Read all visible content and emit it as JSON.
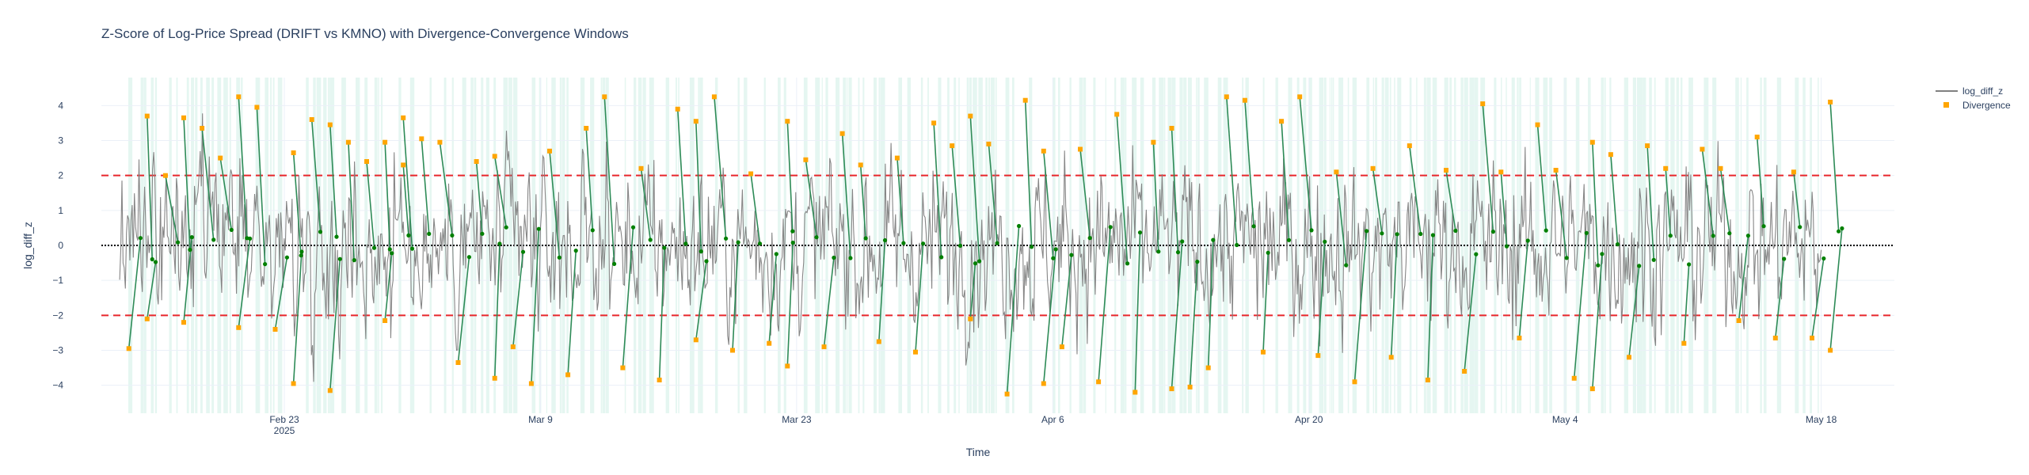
{
  "chart_data": {
    "type": "line",
    "title": "Z-Score of Log-Price Spread (DRIFT vs KMNO) with Divergence-Convergence Windows",
    "xlabel": "Time",
    "ylabel": "log_diff_z",
    "x_range": [
      "2025-02-13",
      "2025-05-22"
    ],
    "x_data_range": [
      "2025-02-14",
      "2025-05-18"
    ],
    "ylim": [
      -4.8,
      4.8
    ],
    "y_ticks": [
      4,
      3,
      2,
      1,
      0,
      -1,
      -2,
      -3,
      -4
    ],
    "x_ticks": [
      {
        "date": "2025-02-23",
        "label": "Feb 23",
        "sublabel": "2025"
      },
      {
        "date": "2025-03-09",
        "label": "Mar 9",
        "sublabel": ""
      },
      {
        "date": "2025-03-23",
        "label": "Mar 23",
        "sublabel": ""
      },
      {
        "date": "2025-04-06",
        "label": "Apr 6",
        "sublabel": ""
      },
      {
        "date": "2025-04-20",
        "label": "Apr 20",
        "sublabel": ""
      },
      {
        "date": "2025-05-04",
        "label": "May 4",
        "sublabel": ""
      },
      {
        "date": "2025-05-18",
        "label": "May 18",
        "sublabel": ""
      }
    ],
    "threshold_lines": [
      {
        "y": 2,
        "color": "#e8262b",
        "style": "dashed"
      },
      {
        "y": -2,
        "color": "#e8262b",
        "style": "dashed"
      },
      {
        "y": 0,
        "color": "#000000",
        "style": "dotted"
      }
    ],
    "grid": true,
    "legend_position": "top-right",
    "series": [
      {
        "name": "log_diff_z",
        "kind": "line",
        "color": "#808080",
        "description_values": "noisy oscillation mostly between -3 and 3"
      },
      {
        "name": "Divergence",
        "kind": "markers",
        "marker": "square",
        "color": "#ffa500"
      }
    ],
    "unlabeled_overlays": {
      "window_line_color": "#2e8b57",
      "convergence_marker_color": "#008000",
      "window_band_color": "#e0f5ee"
    },
    "divergence_points": [
      {
        "x": "2025-02-14",
        "y": -2.95
      },
      {
        "x": "2025-02-15",
        "y": 3.7
      },
      {
        "x": "2025-02-15",
        "y": -2.1
      },
      {
        "x": "2025-02-16",
        "y": 2.0
      },
      {
        "x": "2025-02-17",
        "y": 3.65
      },
      {
        "x": "2025-02-17",
        "y": -2.2
      },
      {
        "x": "2025-02-18",
        "y": 3.35
      },
      {
        "x": "2025-02-19",
        "y": 2.5
      },
      {
        "x": "2025-02-20",
        "y": 4.25
      },
      {
        "x": "2025-02-20",
        "y": -2.35
      },
      {
        "x": "2025-02-21",
        "y": 3.95
      },
      {
        "x": "2025-02-22",
        "y": -2.4
      },
      {
        "x": "2025-02-23",
        "y": -3.95
      },
      {
        "x": "2025-02-23",
        "y": 2.65
      },
      {
        "x": "2025-02-24",
        "y": 3.6
      },
      {
        "x": "2025-02-25",
        "y": 3.45
      },
      {
        "x": "2025-02-25",
        "y": -4.15
      },
      {
        "x": "2025-02-26",
        "y": 2.95
      },
      {
        "x": "2025-02-27",
        "y": 2.4
      },
      {
        "x": "2025-02-28",
        "y": 2.95
      },
      {
        "x": "2025-02-28",
        "y": -2.15
      },
      {
        "x": "2025-03-01",
        "y": 3.65
      },
      {
        "x": "2025-03-01",
        "y": 2.3
      },
      {
        "x": "2025-03-02",
        "y": 3.05
      },
      {
        "x": "2025-03-03",
        "y": 2.95
      },
      {
        "x": "2025-03-04",
        "y": -3.35
      },
      {
        "x": "2025-03-05",
        "y": 2.4
      },
      {
        "x": "2025-03-06",
        "y": -3.8
      },
      {
        "x": "2025-03-06",
        "y": 2.55
      },
      {
        "x": "2025-03-07",
        "y": -2.9
      },
      {
        "x": "2025-03-08",
        "y": -3.95
      },
      {
        "x": "2025-03-09",
        "y": 2.7
      },
      {
        "x": "2025-03-10",
        "y": -3.7
      },
      {
        "x": "2025-03-11",
        "y": 3.35
      },
      {
        "x": "2025-03-12",
        "y": 4.25
      },
      {
        "x": "2025-03-13",
        "y": -3.5
      },
      {
        "x": "2025-03-14",
        "y": 2.2
      },
      {
        "x": "2025-03-15",
        "y": -3.85
      },
      {
        "x": "2025-03-16",
        "y": 3.9
      },
      {
        "x": "2025-03-17",
        "y": 3.55
      },
      {
        "x": "2025-03-17",
        "y": -2.7
      },
      {
        "x": "2025-03-18",
        "y": 4.25
      },
      {
        "x": "2025-03-19",
        "y": -3.0
      },
      {
        "x": "2025-03-20",
        "y": 2.05
      },
      {
        "x": "2025-03-21",
        "y": -2.8
      },
      {
        "x": "2025-03-22",
        "y": 3.55
      },
      {
        "x": "2025-03-22",
        "y": -3.45
      },
      {
        "x": "2025-03-23",
        "y": 2.45
      },
      {
        "x": "2025-03-24",
        "y": -2.9
      },
      {
        "x": "2025-03-25",
        "y": 3.2
      },
      {
        "x": "2025-03-26",
        "y": 2.3
      },
      {
        "x": "2025-03-27",
        "y": -2.75
      },
      {
        "x": "2025-03-28",
        "y": 2.5
      },
      {
        "x": "2025-03-29",
        "y": -3.05
      },
      {
        "x": "2025-03-30",
        "y": 3.5
      },
      {
        "x": "2025-03-31",
        "y": 2.85
      },
      {
        "x": "2025-04-01",
        "y": 3.7
      },
      {
        "x": "2025-04-01",
        "y": -2.1
      },
      {
        "x": "2025-04-02",
        "y": 2.9
      },
      {
        "x": "2025-04-03",
        "y": -4.25
      },
      {
        "x": "2025-04-04",
        "y": 4.15
      },
      {
        "x": "2025-04-05",
        "y": 2.7
      },
      {
        "x": "2025-04-05",
        "y": -3.95
      },
      {
        "x": "2025-04-06",
        "y": -2.9
      },
      {
        "x": "2025-04-07",
        "y": 2.75
      },
      {
        "x": "2025-04-08",
        "y": -3.9
      },
      {
        "x": "2025-04-09",
        "y": 3.75
      },
      {
        "x": "2025-04-10",
        "y": -4.2
      },
      {
        "x": "2025-04-11",
        "y": 2.95
      },
      {
        "x": "2025-04-12",
        "y": 3.35
      },
      {
        "x": "2025-04-12",
        "y": -4.1
      },
      {
        "x": "2025-04-13",
        "y": -4.05
      },
      {
        "x": "2025-04-14",
        "y": -3.5
      },
      {
        "x": "2025-04-15",
        "y": 4.25
      },
      {
        "x": "2025-04-16",
        "y": 4.15
      },
      {
        "x": "2025-04-17",
        "y": -3.05
      },
      {
        "x": "2025-04-18",
        "y": 3.55
      },
      {
        "x": "2025-04-19",
        "y": 4.25
      },
      {
        "x": "2025-04-20",
        "y": -3.15
      },
      {
        "x": "2025-04-21",
        "y": 2.1
      },
      {
        "x": "2025-04-22",
        "y": -3.9
      },
      {
        "x": "2025-04-23",
        "y": 2.2
      },
      {
        "x": "2025-04-24",
        "y": -3.2
      },
      {
        "x": "2025-04-25",
        "y": 2.85
      },
      {
        "x": "2025-04-26",
        "y": -3.85
      },
      {
        "x": "2025-04-27",
        "y": 2.15
      },
      {
        "x": "2025-04-28",
        "y": -3.6
      },
      {
        "x": "2025-04-29",
        "y": 4.05
      },
      {
        "x": "2025-04-30",
        "y": 2.1
      },
      {
        "x": "2025-05-01",
        "y": -2.65
      },
      {
        "x": "2025-05-02",
        "y": 3.45
      },
      {
        "x": "2025-05-03",
        "y": 2.15
      },
      {
        "x": "2025-05-04",
        "y": -3.8
      },
      {
        "x": "2025-05-05",
        "y": 2.95
      },
      {
        "x": "2025-05-05",
        "y": -4.1
      },
      {
        "x": "2025-05-06",
        "y": 2.6
      },
      {
        "x": "2025-05-07",
        "y": -3.2
      },
      {
        "x": "2025-05-08",
        "y": 2.85
      },
      {
        "x": "2025-05-09",
        "y": 2.2
      },
      {
        "x": "2025-05-10",
        "y": -2.8
      },
      {
        "x": "2025-05-11",
        "y": 2.75
      },
      {
        "x": "2025-05-12",
        "y": 2.2
      },
      {
        "x": "2025-05-13",
        "y": -2.15
      },
      {
        "x": "2025-05-14",
        "y": 3.1
      },
      {
        "x": "2025-05-15",
        "y": -2.65
      },
      {
        "x": "2025-05-16",
        "y": 2.1
      },
      {
        "x": "2025-05-17",
        "y": -2.65
      },
      {
        "x": "2025-05-18",
        "y": 4.1
      },
      {
        "x": "2025-05-18",
        "y": -3.0
      }
    ]
  }
}
